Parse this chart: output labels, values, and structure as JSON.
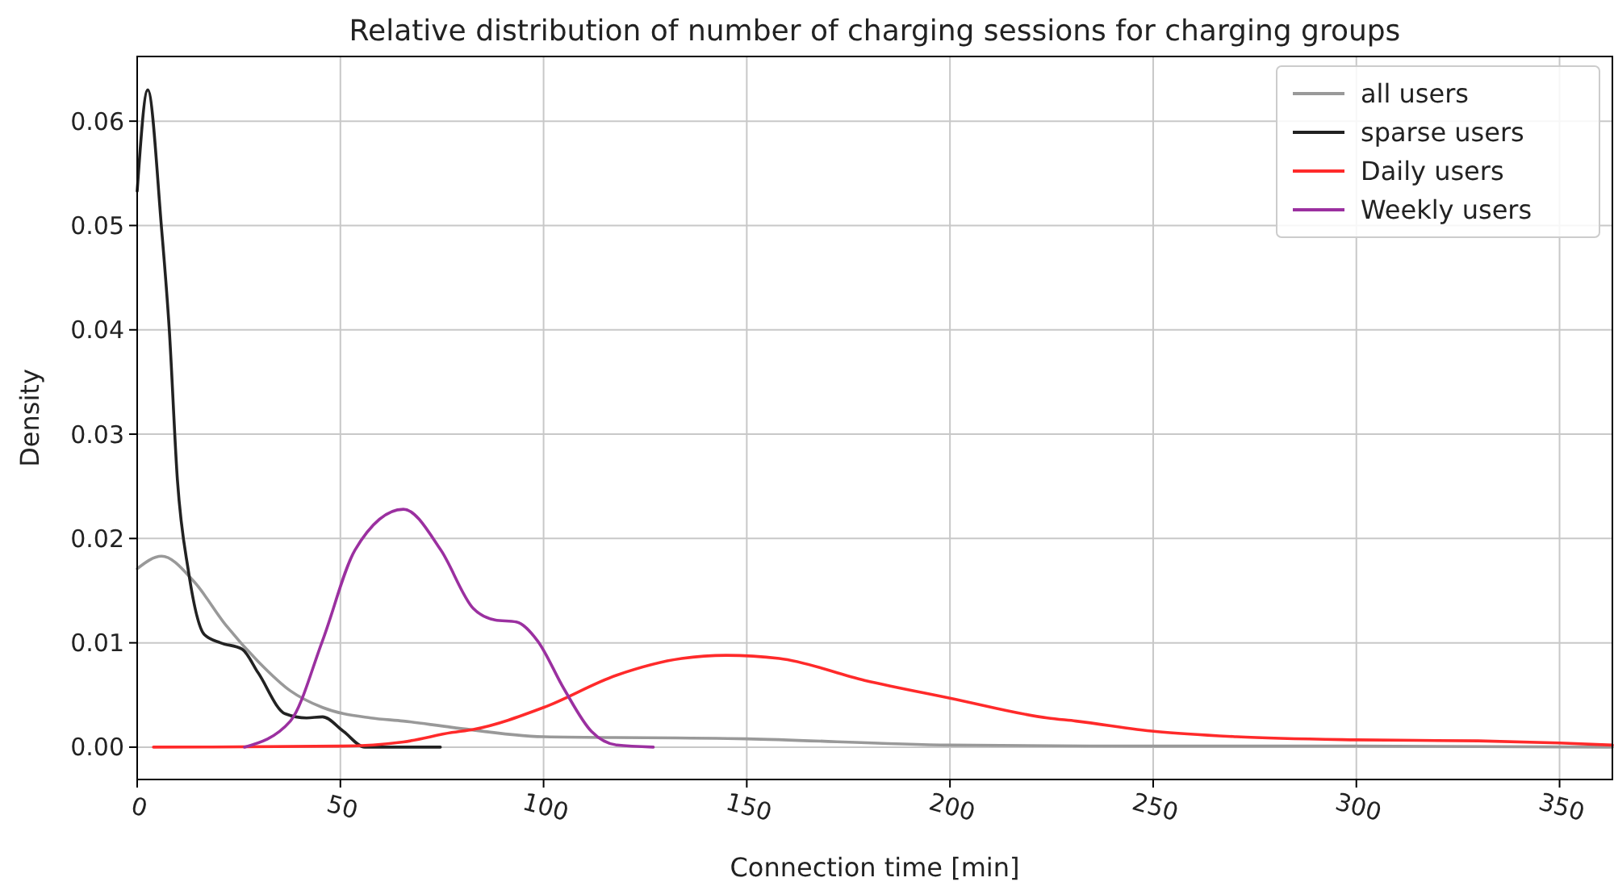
{
  "chart_data": {
    "type": "line",
    "title": "Relative distribution of number of charging sessions for charging groups",
    "xlabel": "Connection time [min]",
    "ylabel": "Density",
    "xlim": [
      0,
      363
    ],
    "xticks": [
      0,
      50,
      100,
      150,
      200,
      250,
      300,
      350
    ],
    "ylim": [
      -0.0031,
      0.0662
    ],
    "yticks": [
      {
        "value": 0,
        "label": "0.00"
      },
      {
        "value": 0.01,
        "label": "0.01"
      },
      {
        "value": 0.02,
        "label": "0.02"
      },
      {
        "value": 0.03,
        "label": "0.03"
      },
      {
        "value": 0.04,
        "label": "0.04"
      },
      {
        "value": 0.05,
        "label": "0.05"
      },
      {
        "value": 0.06,
        "label": "0.06"
      }
    ],
    "grid": true,
    "legend": "top right",
    "marker": "none",
    "line_style": "solid",
    "series": [
      {
        "name": "all users",
        "color": "#999999",
        "x": [
          0,
          6,
          13.9,
          21.8,
          29.8,
          37.7,
          45.6,
          57.5,
          65.5,
          77.4,
          100,
          150,
          200,
          250,
          300,
          363
        ],
        "values": [
          0.0171,
          0.0183,
          0.0159,
          0.0117,
          0.0082,
          0.0054,
          0.0038,
          0.0028,
          0.0025,
          0.0019,
          0.001,
          0.0008,
          0.0002,
          0.0001,
          0.0001,
          0
        ]
      },
      {
        "name": "sparse users",
        "color": "#222222",
        "x": [
          0,
          2.6,
          6,
          7.9,
          9.9,
          12.6,
          16.5,
          20.5,
          25.8,
          29.8,
          36.4,
          41.7,
          45.6,
          50.8,
          56,
          74.6
        ],
        "values": [
          0.0533,
          0.063,
          0.0497,
          0.04,
          0.0256,
          0.0169,
          0.0108,
          0.01,
          0.0094,
          0.0071,
          0.0032,
          0.0028,
          0.0029,
          0.0015,
          0,
          0
        ]
      },
      {
        "name": "Daily users",
        "color": "#ff2a2a",
        "x": [
          4,
          50,
          65.5,
          77.4,
          82.7,
          100,
          118,
          134,
          145,
          158,
          179,
          200,
          224,
          231,
          250.6,
          270.5,
          300,
          330,
          350,
          363
        ],
        "values": [
          0,
          0.0001,
          0.0005,
          0.0014,
          0.0017,
          0.0038,
          0.0069,
          0.0085,
          0.0088,
          0.0085,
          0.0064,
          0.0047,
          0.0028,
          0.0025,
          0.0015,
          0.001,
          0.0007,
          0.0006,
          0.0004,
          0.0002
        ]
      },
      {
        "name": "Weekly users",
        "color": "#9b30a0",
        "x": [
          26.4,
          37.7,
          45.6,
          53.6,
          65.5,
          74.7,
          82.7,
          88,
          93.3,
          98.5,
          105,
          111.8,
          118,
          127
        ],
        "values": [
          0,
          0.0025,
          0.0102,
          0.0189,
          0.0228,
          0.0189,
          0.0133,
          0.0122,
          0.012,
          0.0102,
          0.0056,
          0.0015,
          0.0002,
          0
        ]
      }
    ]
  }
}
